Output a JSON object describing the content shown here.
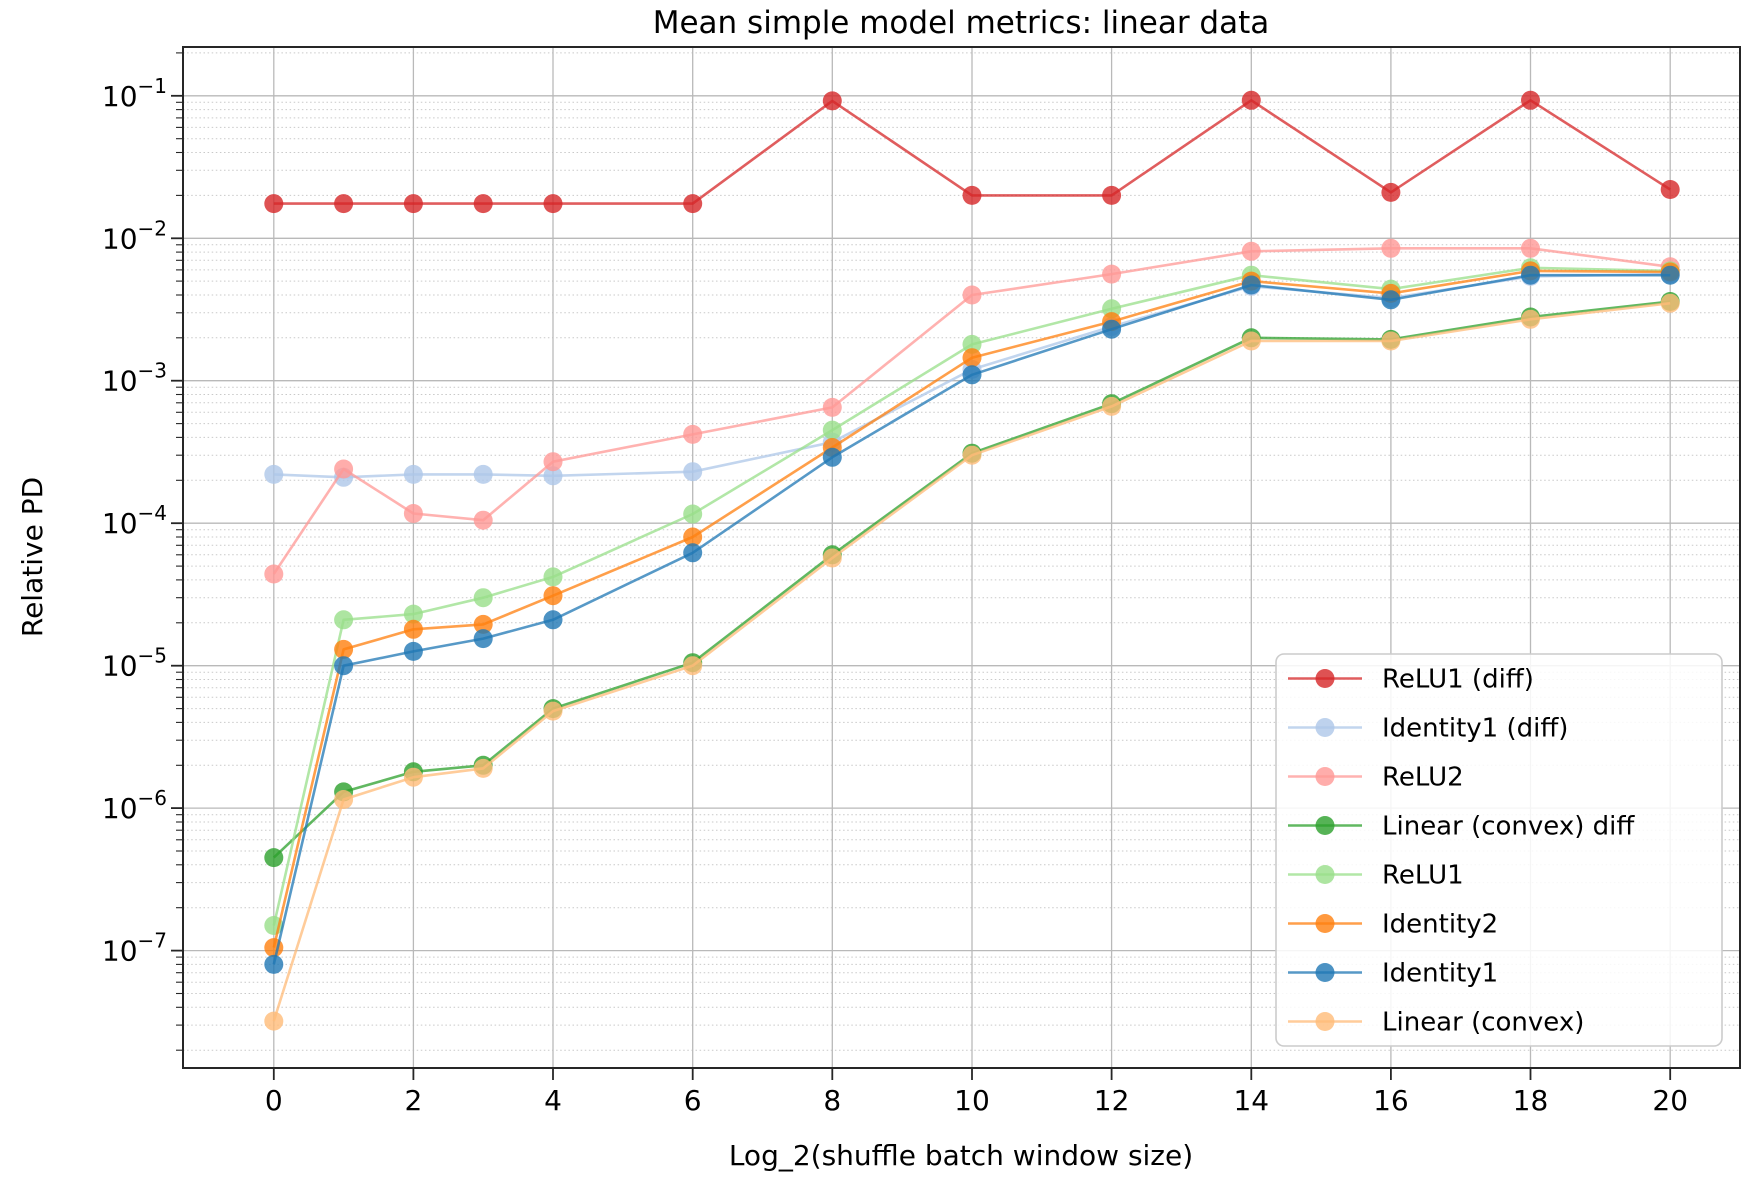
{
  "title": "Mean simple model metrics: linear data",
  "xlabel": "Log_2(shuffle batch window size)",
  "ylabel": "Relative PD",
  "chart_data": {
    "type": "line",
    "title": "Mean simple model metrics: linear data",
    "xlabel": "Log_2(shuffle batch window size)",
    "ylabel": "Relative PD",
    "y_scale": "log",
    "grid": true,
    "legend_position": "lower right",
    "xlim": [
      -1.3,
      21.0
    ],
    "ylim": [
      1.5e-08,
      0.22
    ],
    "x_ticks": [
      0,
      2,
      4,
      6,
      8,
      10,
      12,
      14,
      16,
      18,
      20
    ],
    "y_tick_exponents": [
      -1,
      -2,
      -3,
      -4,
      -5,
      -6,
      -7
    ],
    "x": [
      0,
      1,
      2,
      3,
      4,
      6,
      8,
      10,
      12,
      14,
      16,
      18,
      20
    ],
    "series": [
      {
        "name": "ReLU1 (diff)",
        "color": "#d62728",
        "values": [
          0.0175,
          0.0175,
          0.0175,
          0.0175,
          0.0175,
          0.0175,
          0.092,
          0.02,
          0.02,
          0.093,
          0.021,
          0.093,
          0.022
        ]
      },
      {
        "name": "Identity1 (diff)",
        "color": "#aec7e8",
        "values": [
          0.00022,
          0.00021,
          0.00022,
          0.00022,
          0.000215,
          0.00023,
          0.00037,
          0.0012,
          0.0024,
          0.0046,
          0.0038,
          0.0054,
          0.0056
        ]
      },
      {
        "name": "ReLU2",
        "color": "#ff9896",
        "values": [
          4.4e-05,
          0.00024,
          0.000117,
          0.000105,
          0.00027,
          0.00042,
          0.00065,
          0.004,
          0.0056,
          0.0081,
          0.0085,
          0.0085,
          0.0063
        ]
      },
      {
        "name": "Linear (convex) diff",
        "color": "#2ca02c",
        "values": [
          4.5e-07,
          1.3e-06,
          1.8e-06,
          2e-06,
          5e-06,
          1.05e-05,
          6e-05,
          0.00031,
          0.00069,
          0.002,
          0.00195,
          0.0028,
          0.0036
        ]
      },
      {
        "name": "ReLU1",
        "color": "#98df8a",
        "values": [
          1.5e-07,
          2.1e-05,
          2.3e-05,
          3e-05,
          4.2e-05,
          0.000116,
          0.00045,
          0.0018,
          0.0032,
          0.0055,
          0.0044,
          0.0062,
          0.0059
        ]
      },
      {
        "name": "Identity2",
        "color": "#ff7f0e",
        "values": [
          1.05e-07,
          1.3e-05,
          1.8e-05,
          1.95e-05,
          3.1e-05,
          8e-05,
          0.00034,
          0.00145,
          0.0026,
          0.005,
          0.0041,
          0.0059,
          0.0058
        ]
      },
      {
        "name": "Identity1",
        "color": "#1f77b4",
        "values": [
          8e-08,
          1e-05,
          1.26e-05,
          1.55e-05,
          2.1e-05,
          6.2e-05,
          0.00029,
          0.0011,
          0.0023,
          0.0047,
          0.0037,
          0.0055,
          0.0055
        ]
      },
      {
        "name": "Linear (convex)",
        "color": "#ffbb78",
        "values": [
          3.2e-08,
          1.15e-06,
          1.65e-06,
          1.9e-06,
          4.8e-06,
          1e-05,
          5.7e-05,
          0.0003,
          0.00066,
          0.0019,
          0.0019,
          0.0027,
          0.0035
        ]
      }
    ]
  },
  "style": {
    "major_grid_color": "#b9b9b9",
    "minor_grid_color": "#c9c9c9",
    "frame_color": "#262626",
    "tick_color": "#262626",
    "legend_border_color": "#cccccc",
    "legend_bg_color": "#ffffff"
  }
}
